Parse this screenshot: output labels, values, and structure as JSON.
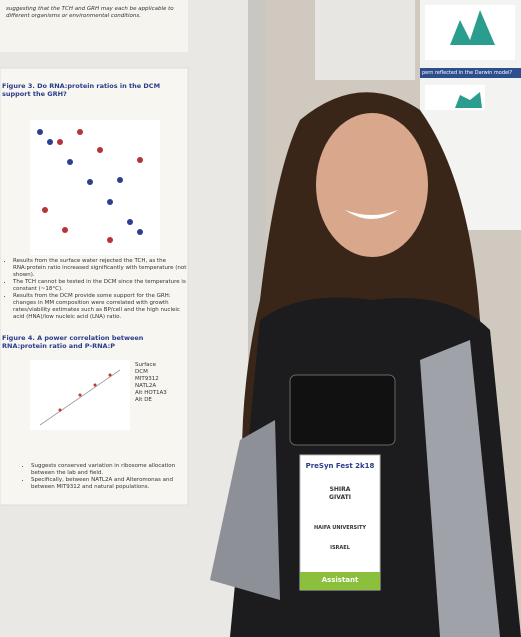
{
  "poster_left": {
    "top_text": "suggesting that the TCH and GRH may each be applicable to different organisms or environmental conditions.",
    "figure3_title": "Figure 3. Do RNA:protein ratios in the DCM support the GRH?",
    "figure3_bullets": [
      "Results from the surface water rejected the TCH, as the RNA:protein ratio increased significantly with temperature (not shown).",
      "The TCH cannot be tested in the DCM since the temperature is constant (~18°C).",
      "Results from the DCM provide some support for the GRH: changes in MM composition were correlated with growth rates/viability estimates such as BP/cell and the high nucleic acid (HNA)/low nucleic acid (LNA) ratio."
    ],
    "figure4_title": "Figure 4. A power correlation between RNA:protein ratio and P-RNA:P",
    "figure4_legend": [
      "Surface",
      "DCM",
      "MIT9312",
      "NATL2A",
      "Alt HOT1A3",
      "Alt DE"
    ],
    "figure4_bullets": [
      "Suggests conserved variation in ribosome allocation between the lab and field.",
      "Specifically, between NATL2A and Alteromonas and between MIT9312 and natural populations."
    ]
  },
  "poster_right": {
    "heading": "pern reflected in the Darwin model?"
  },
  "badge": {
    "event": "PreSyn Fest 2k18",
    "name_first": "SHIRA",
    "name_last": "GIVATI",
    "affiliation": "HAIFA UNIVERSITY",
    "country": "ISRAEL",
    "role": "Assistant"
  }
}
